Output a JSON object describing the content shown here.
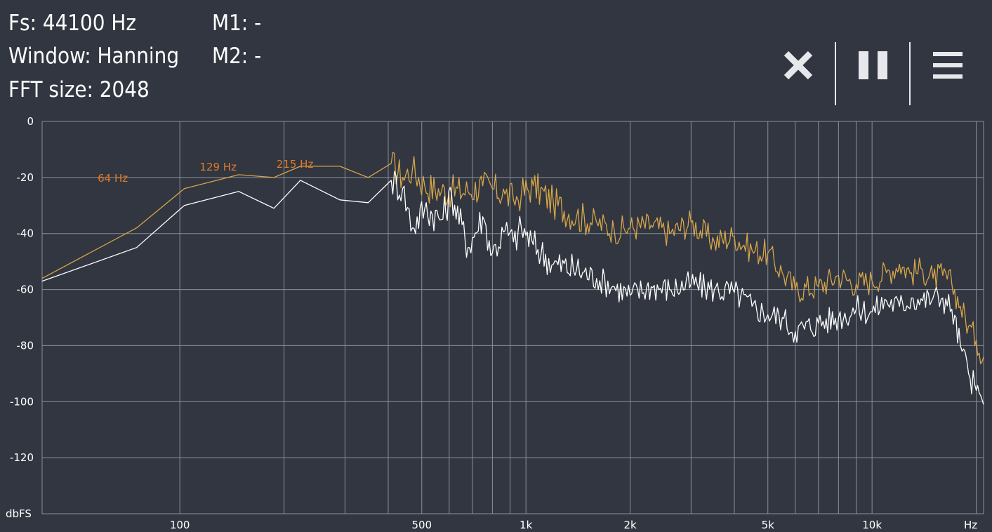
{
  "info": {
    "fs": "Fs: 44100 Hz",
    "window": "Window: Hanning",
    "fft_size": "FFT size: 2048",
    "m1": "M1: -",
    "m2": "M2: -"
  },
  "toolbar": {
    "close_icon": "close-icon",
    "pause_icon": "pause-icon",
    "menu_icon": "menu-icon"
  },
  "colors": {
    "background": "#313640",
    "grid": "#8a8f98",
    "peak_series": "#d6a54a",
    "live_series": "#ffffff",
    "marker_label": "#e07b2a"
  },
  "chart_data": {
    "type": "line",
    "x_scale": "log",
    "xlim": [
      40,
      21000
    ],
    "ylim": [
      -140,
      0
    ],
    "y_ticks": [
      0,
      -20,
      -40,
      -60,
      -80,
      -100,
      -120
    ],
    "ylabel": "dbFS",
    "xlabel": "Hz",
    "x_tick_labels": [
      {
        "value": 100,
        "label": "100"
      },
      {
        "value": 500,
        "label": "500"
      },
      {
        "value": 1000,
        "label": "1k"
      },
      {
        "value": 2000,
        "label": "2k"
      },
      {
        "value": 5000,
        "label": "5k"
      },
      {
        "value": 10000,
        "label": "10k"
      }
    ],
    "x_gridlines": [
      100,
      200,
      300,
      400,
      500,
      600,
      700,
      800,
      900,
      1000,
      2000,
      3000,
      4000,
      5000,
      6000,
      7000,
      8000,
      9000,
      10000,
      20000
    ],
    "grid": true,
    "markers": [
      {
        "x": 64,
        "y": -20,
        "label": "64 Hz"
      },
      {
        "x": 129,
        "y": -16,
        "label": "129 Hz"
      },
      {
        "x": 215,
        "y": -15,
        "label": "215 Hz"
      }
    ],
    "series": [
      {
        "role": "peak-hold",
        "x": [
          40,
          75,
          103,
          148,
          187,
          223,
          290,
          350,
          408,
          440,
          470,
          510,
          570,
          610,
          680,
          750,
          800,
          870,
          920,
          970,
          1050,
          1200,
          1400,
          1600,
          1800,
          2000,
          2300,
          2600,
          3000,
          3500,
          4000,
          4500,
          5000,
          5500,
          6000,
          7000,
          8000,
          9000,
          10000,
          11000,
          12000,
          13000,
          14000,
          15000,
          16000,
          17000,
          18000,
          19000,
          20000,
          21000
        ],
        "y": [
          -56,
          -38,
          -24,
          -19,
          -20,
          -16,
          -16,
          -20,
          -15,
          -20,
          -17,
          -23,
          -25,
          -25,
          -25,
          -23,
          -24,
          -26,
          -28,
          -26,
          -23,
          -29,
          -34,
          -36,
          -39,
          -38,
          -37,
          -40,
          -36,
          -43,
          -41,
          -46,
          -47,
          -54,
          -60,
          -59,
          -55,
          -58,
          -57,
          -54,
          -51,
          -54,
          -53,
          -56,
          -55,
          -58,
          -66,
          -73,
          -78,
          -84
        ]
      },
      {
        "role": "live",
        "x": [
          40,
          75,
          103,
          148,
          187,
          223,
          290,
          350,
          408,
          440,
          470,
          510,
          570,
          610,
          680,
          750,
          800,
          870,
          920,
          970,
          1050,
          1200,
          1400,
          1600,
          1800,
          2000,
          2300,
          2600,
          3000,
          3500,
          4000,
          4500,
          5000,
          5500,
          6000,
          7000,
          8000,
          9000,
          10000,
          11000,
          12000,
          13000,
          14000,
          15000,
          16000,
          17000,
          18000,
          19000,
          20000,
          21000
        ],
        "y": [
          -57,
          -45,
          -30,
          -25,
          -31,
          -21,
          -28,
          -29,
          -21,
          -24,
          -38,
          -31,
          -35,
          -26,
          -45,
          -34,
          -47,
          -39,
          -43,
          -38,
          -44,
          -51,
          -53,
          -56,
          -59,
          -62,
          -59,
          -60,
          -58,
          -60,
          -61,
          -66,
          -69,
          -70,
          -75,
          -72,
          -70,
          -67,
          -68,
          -64,
          -66,
          -63,
          -64,
          -63,
          -63,
          -67,
          -80,
          -90,
          -96,
          -101
        ]
      }
    ]
  }
}
